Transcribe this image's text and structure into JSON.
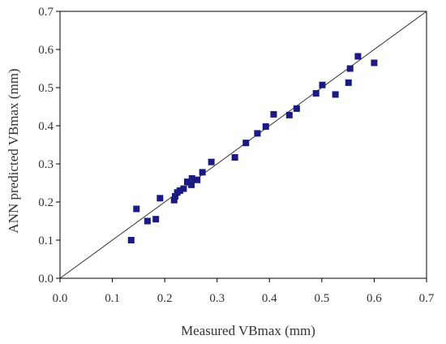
{
  "chart_data": {
    "type": "scatter",
    "xlabel": "Measured VBmax (mm)",
    "ylabel": "ANN predicted VBmax (mm)",
    "xlim": [
      0.0,
      0.7
    ],
    "ylim": [
      0.0,
      0.7
    ],
    "x_ticks": [
      "0.0",
      "0.1",
      "0.2",
      "0.3",
      "0.4",
      "0.5",
      "0.6",
      "0.7"
    ],
    "y_ticks": [
      "0.0",
      "0.1",
      "0.2",
      "0.3",
      "0.4",
      "0.5",
      "0.6",
      "0.7"
    ],
    "grid": false,
    "reference_line": {
      "from": [
        0.0,
        0.0
      ],
      "to": [
        0.7,
        0.7
      ]
    },
    "marker": "square",
    "marker_color": "#1a1a80",
    "points": [
      {
        "x": 0.136,
        "y": 0.1
      },
      {
        "x": 0.146,
        "y": 0.182
      },
      {
        "x": 0.167,
        "y": 0.15
      },
      {
        "x": 0.183,
        "y": 0.155
      },
      {
        "x": 0.191,
        "y": 0.21
      },
      {
        "x": 0.218,
        "y": 0.205
      },
      {
        "x": 0.22,
        "y": 0.215
      },
      {
        "x": 0.224,
        "y": 0.225
      },
      {
        "x": 0.229,
        "y": 0.23
      },
      {
        "x": 0.236,
        "y": 0.235
      },
      {
        "x": 0.243,
        "y": 0.253
      },
      {
        "x": 0.251,
        "y": 0.245
      },
      {
        "x": 0.252,
        "y": 0.262
      },
      {
        "x": 0.262,
        "y": 0.258
      },
      {
        "x": 0.272,
        "y": 0.278
      },
      {
        "x": 0.289,
        "y": 0.305
      },
      {
        "x": 0.334,
        "y": 0.317
      },
      {
        "x": 0.355,
        "y": 0.355
      },
      {
        "x": 0.377,
        "y": 0.38
      },
      {
        "x": 0.393,
        "y": 0.398
      },
      {
        "x": 0.408,
        "y": 0.43
      },
      {
        "x": 0.438,
        "y": 0.428
      },
      {
        "x": 0.452,
        "y": 0.445
      },
      {
        "x": 0.489,
        "y": 0.485
      },
      {
        "x": 0.501,
        "y": 0.507
      },
      {
        "x": 0.526,
        "y": 0.482
      },
      {
        "x": 0.551,
        "y": 0.513
      },
      {
        "x": 0.554,
        "y": 0.55
      },
      {
        "x": 0.569,
        "y": 0.582
      },
      {
        "x": 0.6,
        "y": 0.565
      }
    ]
  }
}
